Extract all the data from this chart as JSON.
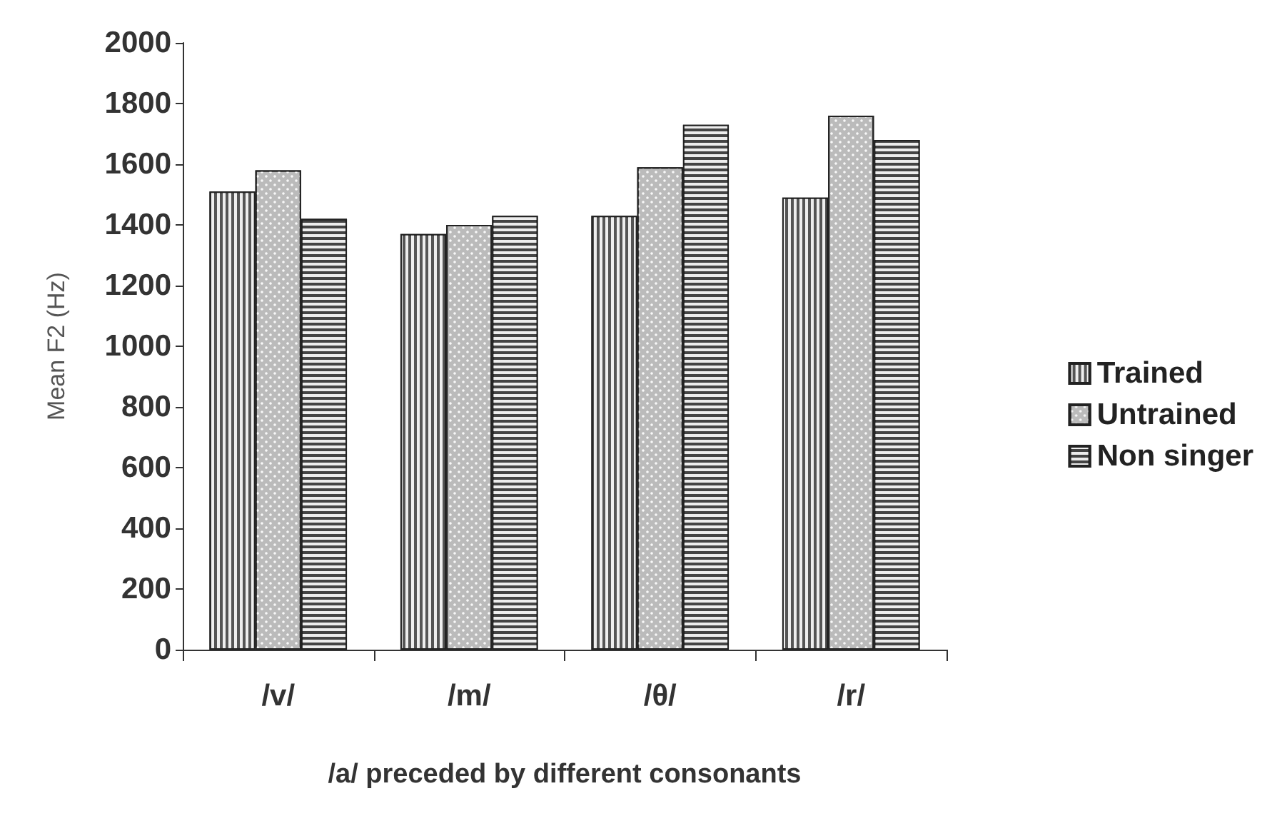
{
  "chart_data": {
    "type": "bar",
    "xlabel": "/a/ preceded by different consonants",
    "ylabel": "Mean F2 (Hz)",
    "categories": [
      "/v/",
      "/m/",
      "/θ/",
      "/r/"
    ],
    "series": [
      {
        "name": "Trained",
        "color": "#555555",
        "values": [
          1510,
          1370,
          1430,
          1490
        ]
      },
      {
        "name": "Untrained",
        "color": "#bbbbbb",
        "values": [
          1580,
          1400,
          1590,
          1760
        ]
      },
      {
        "name": "Non singer",
        "color": "#444444",
        "values": [
          1420,
          1430,
          1730,
          1680
        ]
      }
    ],
    "ylim": [
      0,
      2000
    ],
    "yticks": [
      0,
      200,
      400,
      600,
      800,
      1000,
      1200,
      1400,
      1600,
      1800,
      2000
    ],
    "grid": false,
    "legend": "right"
  }
}
